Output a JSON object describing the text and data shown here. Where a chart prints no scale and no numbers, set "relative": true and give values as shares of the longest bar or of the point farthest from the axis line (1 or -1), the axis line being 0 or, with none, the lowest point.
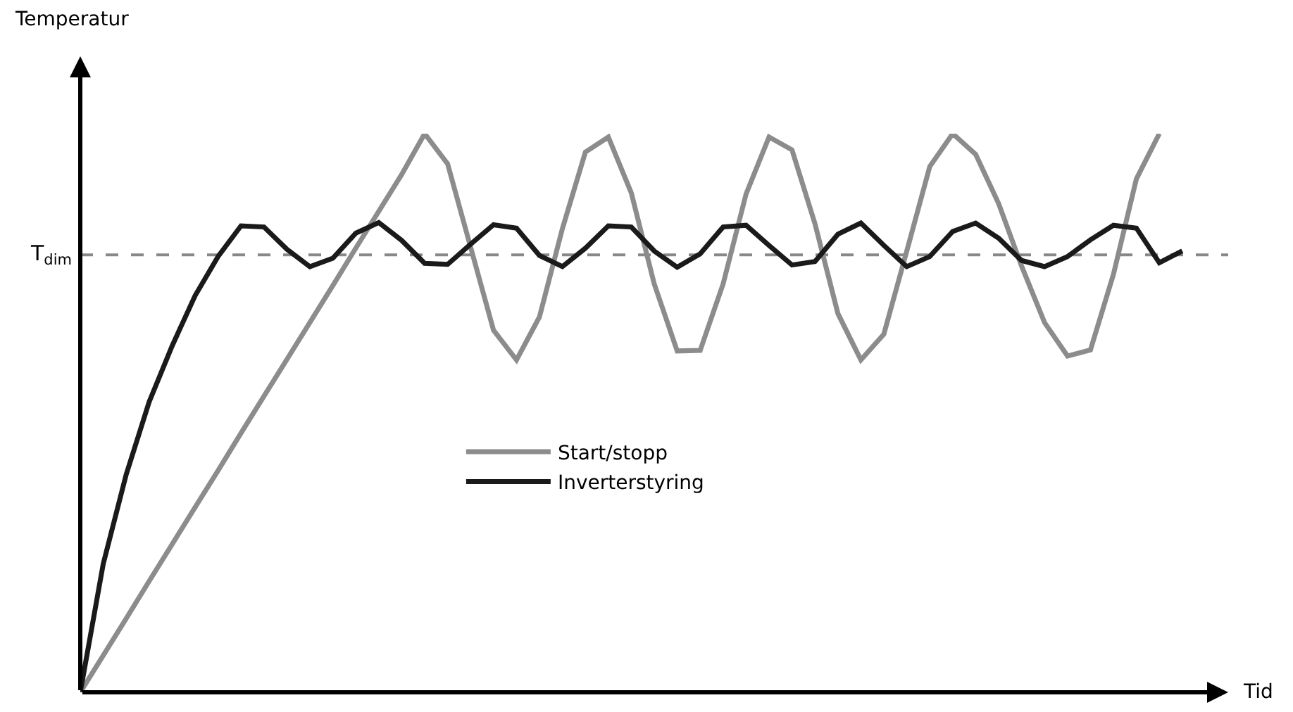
{
  "chart_data": {
    "type": "line",
    "relative": true,
    "xlabel": "Tid",
    "annotations": [
      "Temperatur"
    ],
    "legend": "center",
    "grid": false,
    "marker": "none",
    "categories": [
      null,
      null,
      null,
      null,
      null,
      null,
      null,
      null,
      null,
      null,
      null,
      null,
      null,
      null,
      null,
      null,
      null,
      null,
      null,
      null,
      null,
      null,
      null,
      null,
      null,
      null,
      null,
      null,
      null,
      null,
      null,
      null,
      null,
      null,
      null,
      null,
      null,
      null,
      null,
      null,
      null,
      null,
      null,
      null,
      null,
      null,
      null,
      null,
      null,
      null
    ],
    "ref_lines": [
      {
        "axis": "y",
        "value": 0.783,
        "label": "T$_{dim}$",
        "color": "#888888",
        "line_style": "dashed"
      }
    ],
    "series": [
      {
        "name": "Start/stopp",
        "color": "#8c8c8c",
        "values": [
          0,
          0.066,
          0.132,
          0.199,
          0.265,
          0.331,
          0.397,
          0.464,
          0.53,
          0.596,
          0.662,
          0.728,
          0.795,
          0.861,
          0.927,
          1.0,
          0.946,
          0.797,
          0.648,
          0.595,
          0.672,
          0.83,
          0.967,
          0.994,
          0.894,
          0.731,
          0.611,
          0.612,
          0.731,
          0.892,
          0.994,
          0.971,
          0.839,
          0.678,
          0.595,
          0.641,
          0.79,
          0.941,
          1.0,
          0.963,
          0.875,
          0.763,
          0.662,
          0.602,
          0.613,
          0.748,
          0.919,
          1.0,
          null,
          null
        ]
      },
      {
        "name": "Inverterstyring",
        "color": "#1a1a1a",
        "values": [
          0,
          0.23,
          0.39,
          0.52,
          0.62,
          0.71,
          0.78,
          0.835,
          0.833,
          0.793,
          0.762,
          0.777,
          0.822,
          0.841,
          0.809,
          0.768,
          0.766,
          0.802,
          0.837,
          0.831,
          0.782,
          0.762,
          0.795,
          0.835,
          0.833,
          0.79,
          0.761,
          0.785,
          0.833,
          0.836,
          0.8,
          0.765,
          0.771,
          0.82,
          0.84,
          0.8,
          0.762,
          0.78,
          0.825,
          0.84,
          0.813,
          0.773,
          0.762,
          0.78,
          0.81,
          0.836,
          0.831,
          0.769,
          0.79,
          null
        ]
      }
    ]
  }
}
